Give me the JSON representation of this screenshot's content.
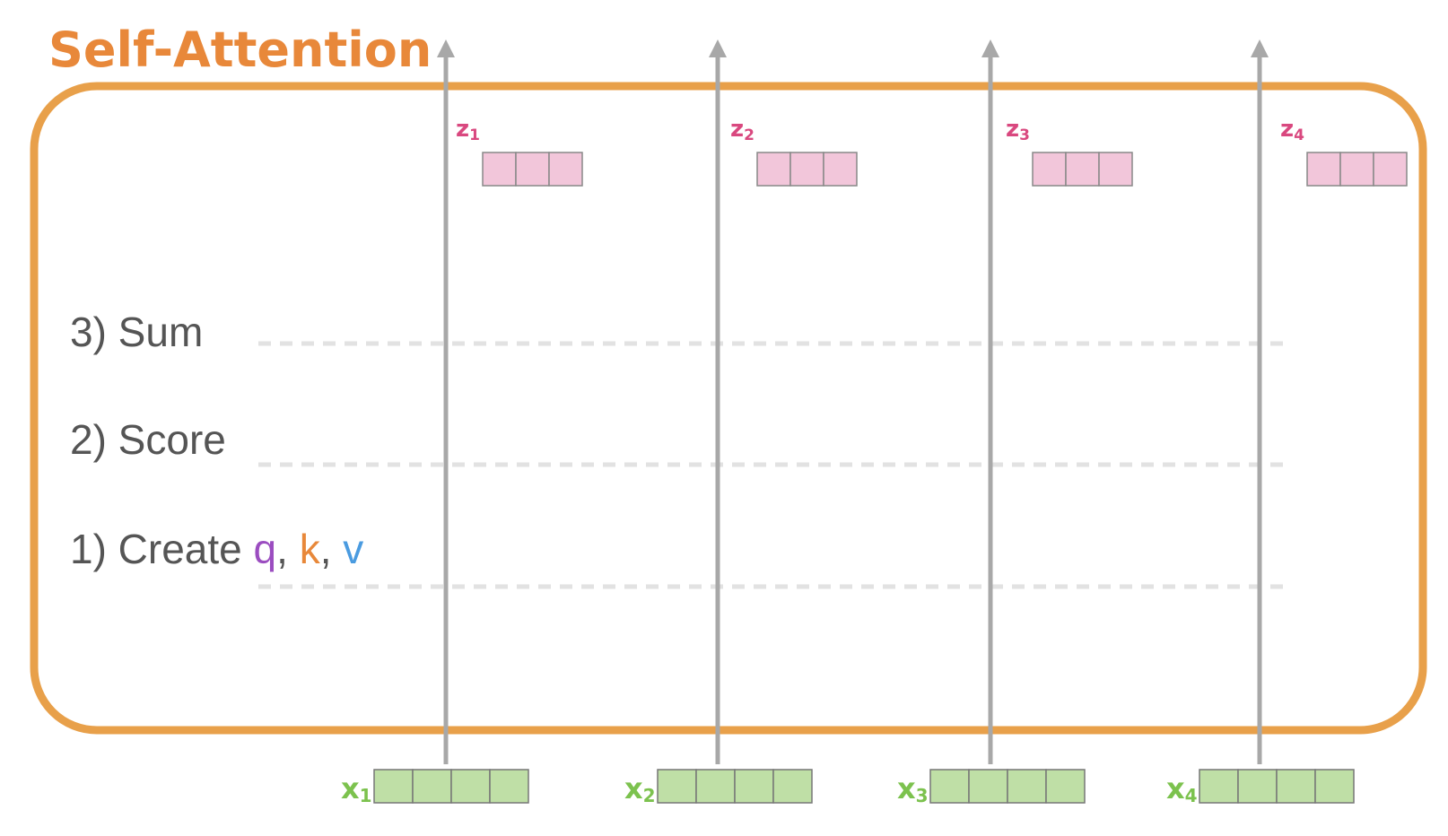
{
  "title": "Self-Attention",
  "steps": [
    {
      "prefix": "3) Sum"
    },
    {
      "prefix": "2) Score"
    },
    {
      "prefix": "1) Create ",
      "parts": [
        "q",
        ", ",
        "k",
        ", ",
        "v"
      ]
    }
  ],
  "inputs": [
    {
      "letter": "x",
      "sub": "1"
    },
    {
      "letter": "x",
      "sub": "2"
    },
    {
      "letter": "x",
      "sub": "3"
    },
    {
      "letter": "x",
      "sub": "4"
    }
  ],
  "outputs": [
    {
      "letter": "z",
      "sub": "1"
    },
    {
      "letter": "z",
      "sub": "2"
    },
    {
      "letter": "z",
      "sub": "3"
    },
    {
      "letter": "z",
      "sub": "4"
    }
  ],
  "colors": {
    "accent": "#E8A04A",
    "title": "#E8883A",
    "step_text": "#555555",
    "q": "#9B4DC0",
    "k": "#E8883A",
    "v": "#4A9BE0",
    "input_fill": "#BFDFA6",
    "input_label": "#7CC24E",
    "output_fill": "#F2C6DA",
    "output_label": "#D9487F",
    "arrow": "#A8A8A8",
    "dashed": "#E2E2E2"
  },
  "icons": {
    "flow": "up-arrow-icon"
  }
}
